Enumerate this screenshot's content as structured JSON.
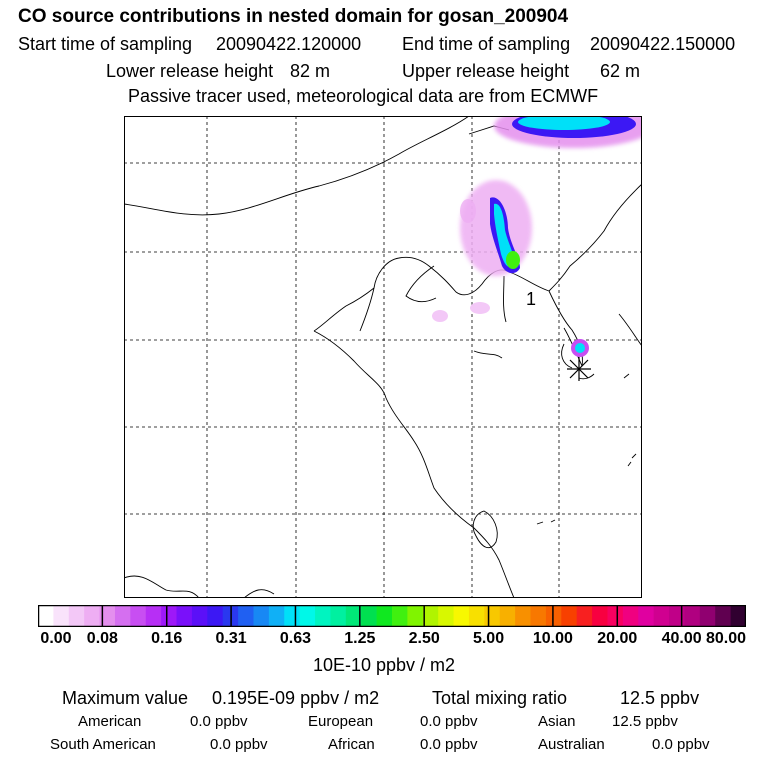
{
  "header": {
    "title": "CO  source contributions in nested domain for gosan_200904",
    "start_label": "Start time of sampling",
    "start_value": "20090422.120000",
    "end_label": "End time of sampling",
    "end_value": "20090422.150000",
    "lower_label": "Lower release height",
    "lower_value": "82 m",
    "upper_label": "Upper release height",
    "upper_value": "62 m",
    "note": "Passive tracer used, meteorological data are from ECMWF"
  },
  "map": {
    "marker_label": "1",
    "receptor_icon": "asterisk-icon"
  },
  "colorbar": {
    "ticks": [
      "0.00",
      "0.08",
      "0.16",
      "0.31",
      "0.63",
      "1.25",
      "2.50",
      "5.00",
      "10.00",
      "20.00",
      "40.00",
      "80.00"
    ],
    "units": "10E-10 ppbv / m2",
    "colors": [
      "#ffffff",
      "#f9e3fb",
      "#f3c8f7",
      "#eeaef3",
      "#e48fee",
      "#d56ff0",
      "#c84ef2",
      "#b72ff5",
      "#9e18f8",
      "#7a10fa",
      "#5b10f8",
      "#3c18f4",
      "#2a38f0",
      "#2060f2",
      "#1888f4",
      "#10b0f6",
      "#00e0f8",
      "#00f8e8",
      "#00f4c0",
      "#00f0a0",
      "#00e878",
      "#00e050",
      "#10e820",
      "#40f010",
      "#80f400",
      "#b0f400",
      "#d8f800",
      "#f8f800",
      "#f8e000",
      "#f8c800",
      "#f8b000",
      "#f89000",
      "#f87800",
      "#f86000",
      "#f84000",
      "#f82020",
      "#f80040",
      "#f80060",
      "#f00080",
      "#e000a0",
      "#d00090",
      "#c00088",
      "#b00080",
      "#900070",
      "#600050",
      "#300030"
    ]
  },
  "stats": {
    "max_label": "Maximum value",
    "max_value": "0.195E-09 ppbv / m2",
    "total_label": "Total mixing ratio",
    "total_value": "12.5 ppbv",
    "regions": [
      {
        "name": "American",
        "value": "0.0 ppbv"
      },
      {
        "name": "European",
        "value": "0.0 ppbv"
      },
      {
        "name": "Asian",
        "value": "12.5 ppbv"
      },
      {
        "name": "South American",
        "value": "0.0 ppbv"
      },
      {
        "name": "African",
        "value": "0.0 ppbv"
      },
      {
        "name": "Australian",
        "value": "0.0 ppbv"
      }
    ]
  }
}
